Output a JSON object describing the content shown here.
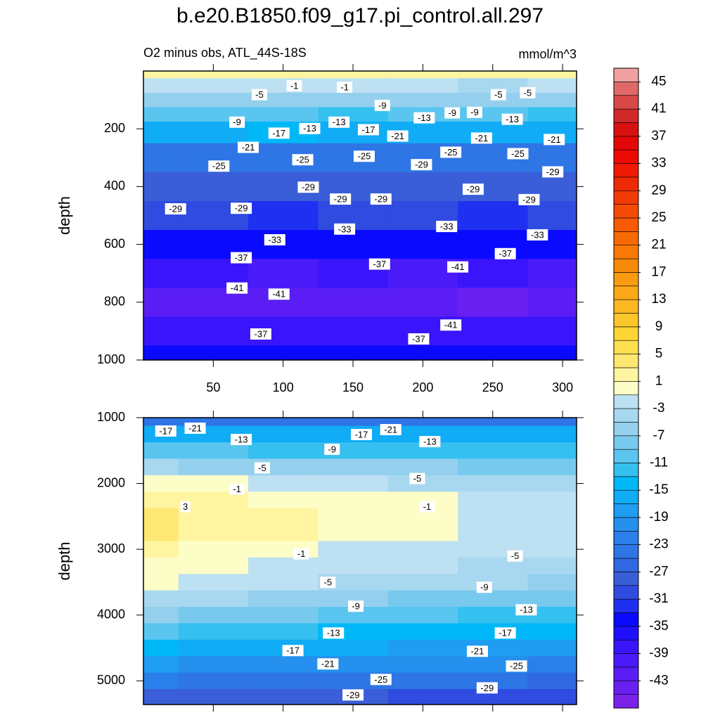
{
  "chart_data": {
    "type": "contour",
    "title": "b.e20.B1850.f09_g17.pi_control.all.297",
    "subtitle": "O2 minus obs, ATL_44S-18S",
    "units": "mmol/m^3",
    "colorbar": {
      "clim": [
        -47,
        47
      ],
      "ticks": [
        45,
        41,
        37,
        33,
        29,
        25,
        21,
        17,
        13,
        9,
        5,
        1,
        -3,
        -7,
        -11,
        -15,
        -19,
        -23,
        -27,
        -31,
        -35,
        -39,
        -43
      ],
      "colors": [
        "#7b22ea",
        "#6a20f0",
        "#5a1ef5",
        "#4a1af8",
        "#3a14fa",
        "#1e10fc",
        "#0a0aff",
        "#1f30f0",
        "#2f4be0",
        "#3a5ed8",
        "#2f68e0",
        "#2e75e6",
        "#2a80ea",
        "#2590ee",
        "#1e9df2",
        "#10acf5",
        "#00b8f8",
        "#35c0f0",
        "#5ac6f0",
        "#78c9ee",
        "#94d0ee",
        "#a8d8f0",
        "#bde0f2",
        "#fdfdc8",
        "#fff5a0",
        "#fde873",
        "#fde050",
        "#fdd534",
        "#fcc72a",
        "#fbb820",
        "#faa818",
        "#f99a10",
        "#f88a0a",
        "#f87a05",
        "#f86a04",
        "#f85a04",
        "#f54a04",
        "#f23a04",
        "#f02a04",
        "#ee1a04",
        "#ec0a04",
        "#e40808",
        "#d81010",
        "#d02828",
        "#d84848",
        "#e06868",
        "#f0a0a0"
      ]
    },
    "panels": [
      {
        "ylabel": "depth",
        "xlim": [
          0,
          310
        ],
        "ylim": [
          0,
          1000
        ],
        "xticks": [
          50,
          100,
          150,
          200,
          250,
          300
        ],
        "yticks": [
          200,
          400,
          600,
          800,
          1000
        ],
        "xtick_labels": true,
        "x": [
          0,
          50,
          100,
          150,
          200,
          250,
          300
        ],
        "depth": [
          0,
          50,
          100,
          150,
          200,
          300,
          400,
          500,
          600,
          700,
          800,
          900,
          1000
        ],
        "values": [
          [
            1,
            1,
            1,
            1,
            1,
            1,
            1
          ],
          [
            -3,
            -3,
            -2,
            -3,
            -3,
            -4,
            -3
          ],
          [
            -7,
            -7,
            -6,
            -7,
            -7,
            -6,
            -7
          ],
          [
            -11,
            -11,
            -11,
            -12,
            -11,
            -11,
            -12
          ],
          [
            -16,
            -16,
            -15,
            -16,
            -16,
            -17,
            -16
          ],
          [
            -24,
            -24,
            -25,
            -24,
            -25,
            -24,
            -25
          ],
          [
            -28,
            -28,
            -28,
            -29,
            -28,
            -28,
            -28
          ],
          [
            -31,
            -31,
            -32,
            -31,
            -31,
            -32,
            -31
          ],
          [
            -35,
            -35,
            -35,
            -35,
            -35,
            -35,
            -35
          ],
          [
            -39,
            -39,
            -40,
            -39,
            -40,
            -39,
            -40
          ],
          [
            -42,
            -43,
            -43,
            -43,
            -42,
            -44,
            -43
          ],
          [
            -38,
            -38,
            -38,
            -38,
            -39,
            -38,
            -38
          ],
          [
            -35,
            -35,
            -35,
            -35,
            -35,
            -35,
            -35
          ]
        ],
        "labels": [
          {
            "x": 83,
            "depth": 82,
            "value": -5
          },
          {
            "x": 108,
            "depth": 51,
            "value": -1
          },
          {
            "x": 144,
            "depth": 56,
            "value": -1
          },
          {
            "x": 171,
            "depth": 119,
            "value": -9
          },
          {
            "x": 201,
            "depth": 162,
            "value": -13
          },
          {
            "x": 221,
            "depth": 145,
            "value": -9
          },
          {
            "x": 237,
            "depth": 143,
            "value": -9
          },
          {
            "x": 254,
            "depth": 82,
            "value": -5
          },
          {
            "x": 275,
            "depth": 75,
            "value": -5
          },
          {
            "x": 67,
            "depth": 177,
            "value": -9
          },
          {
            "x": 97,
            "depth": 215,
            "value": -17
          },
          {
            "x": 119,
            "depth": 199,
            "value": -13
          },
          {
            "x": 140,
            "depth": 177,
            "value": -13
          },
          {
            "x": 161,
            "depth": 203,
            "value": -17
          },
          {
            "x": 182,
            "depth": 225,
            "value": -21
          },
          {
            "x": 242,
            "depth": 232,
            "value": -21
          },
          {
            "x": 264,
            "depth": 167,
            "value": -13
          },
          {
            "x": 294,
            "depth": 237,
            "value": -21
          },
          {
            "x": 75,
            "depth": 264,
            "value": -21
          },
          {
            "x": 54,
            "depth": 329,
            "value": -25
          },
          {
            "x": 114,
            "depth": 307,
            "value": -25
          },
          {
            "x": 158,
            "depth": 295,
            "value": -25
          },
          {
            "x": 220,
            "depth": 281,
            "value": -25
          },
          {
            "x": 268,
            "depth": 286,
            "value": -25
          },
          {
            "x": 199,
            "depth": 324,
            "value": -29
          },
          {
            "x": 293,
            "depth": 349,
            "value": -29
          },
          {
            "x": 118,
            "depth": 402,
            "value": -29
          },
          {
            "x": 141,
            "depth": 443,
            "value": -29
          },
          {
            "x": 170,
            "depth": 443,
            "value": -29
          },
          {
            "x": 236,
            "depth": 409,
            "value": -29
          },
          {
            "x": 276,
            "depth": 445,
            "value": -29
          },
          {
            "x": 23,
            "depth": 477,
            "value": -29
          },
          {
            "x": 70,
            "depth": 475,
            "value": -29
          },
          {
            "x": 94,
            "depth": 584,
            "value": -33
          },
          {
            "x": 144,
            "depth": 547,
            "value": -33
          },
          {
            "x": 217,
            "depth": 538,
            "value": -33
          },
          {
            "x": 282,
            "depth": 567,
            "value": -33
          },
          {
            "x": 70,
            "depth": 646,
            "value": -37
          },
          {
            "x": 169,
            "depth": 668,
            "value": -37
          },
          {
            "x": 259,
            "depth": 632,
            "value": -37
          },
          {
            "x": 225,
            "depth": 678,
            "value": -41
          },
          {
            "x": 67,
            "depth": 751,
            "value": -41
          },
          {
            "x": 97,
            "depth": 772,
            "value": -41
          },
          {
            "x": 220,
            "depth": 879,
            "value": -41
          },
          {
            "x": 84,
            "depth": 910,
            "value": -37
          },
          {
            "x": 197,
            "depth": 927,
            "value": -37
          }
        ]
      },
      {
        "ylabel": "depth",
        "xlim": [
          0,
          310
        ],
        "ylim": [
          1000,
          5360
        ],
        "xticks": [
          50,
          100,
          150,
          200,
          250,
          300
        ],
        "yticks": [
          1000,
          2000,
          3000,
          4000,
          5000
        ],
        "xtick_labels": false,
        "x": [
          0,
          50,
          100,
          150,
          200,
          250,
          300
        ],
        "depth": [
          1000,
          1250,
          1500,
          1750,
          2000,
          2250,
          2500,
          2750,
          3000,
          3250,
          3500,
          3750,
          4000,
          4250,
          4500,
          4750,
          5000,
          5250
        ],
        "values": [
          [
            -25,
            -25,
            -25,
            -25,
            -25,
            -25,
            -25
          ],
          [
            -17,
            -17,
            -17,
            -17,
            -17,
            -17,
            -17
          ],
          [
            -11,
            -11,
            -12,
            -12,
            -12,
            -13,
            -13
          ],
          [
            -5,
            -6,
            -6,
            -7,
            -7,
            -8,
            -8
          ],
          [
            0,
            -1,
            -2,
            -3,
            -4,
            -4,
            -4
          ],
          [
            2,
            1,
            0,
            -1,
            -1,
            -3,
            -3
          ],
          [
            3,
            2,
            1,
            0,
            -0.5,
            -2,
            -2.5
          ],
          [
            3,
            2,
            1,
            0,
            -1,
            -2,
            -2.5
          ],
          [
            1,
            0,
            -1,
            -1.5,
            -2,
            -2.5,
            -3
          ],
          [
            0,
            -1,
            -2,
            -2.5,
            -3,
            -3.5,
            -4
          ],
          [
            -1,
            -2,
            -3,
            -4,
            -4.5,
            -5,
            -6
          ],
          [
            -4,
            -5,
            -6,
            -7,
            -8,
            -8,
            -9
          ],
          [
            -7,
            -8,
            -9,
            -10,
            -11,
            -12,
            -12
          ],
          [
            -11,
            -12,
            -13,
            -14,
            -14,
            -15,
            -15
          ],
          [
            -15,
            -16,
            -17,
            -17,
            -18,
            -18,
            -18
          ],
          [
            -19,
            -20,
            -20,
            -21,
            -21,
            -21,
            -22
          ],
          [
            -23,
            -24,
            -24,
            -25,
            -25,
            -25,
            -26
          ],
          [
            -28,
            -29,
            -29,
            -29,
            -30,
            -30,
            -30
          ]
        ],
        "labels": [
          {
            "x": 16,
            "depth": 1203,
            "value": -17
          },
          {
            "x": 37,
            "depth": 1160,
            "value": -21
          },
          {
            "x": 70,
            "depth": 1332,
            "value": -13
          },
          {
            "x": 135,
            "depth": 1481,
            "value": -9
          },
          {
            "x": 156,
            "depth": 1257,
            "value": -17
          },
          {
            "x": 177,
            "depth": 1182,
            "value": -21
          },
          {
            "x": 205,
            "depth": 1364,
            "value": -13
          },
          {
            "x": 85,
            "depth": 1764,
            "value": -5
          },
          {
            "x": 196,
            "depth": 1925,
            "value": -5
          },
          {
            "x": 67,
            "depth": 2086,
            "value": -1
          },
          {
            "x": 30,
            "depth": 2353,
            "value": 3
          },
          {
            "x": 203,
            "depth": 2353,
            "value": -1
          },
          {
            "x": 113,
            "depth": 3070,
            "value": -1
          },
          {
            "x": 266,
            "depth": 3102,
            "value": -5
          },
          {
            "x": 132,
            "depth": 3503,
            "value": -5
          },
          {
            "x": 244,
            "depth": 3578,
            "value": -9
          },
          {
            "x": 152,
            "depth": 3866,
            "value": -9
          },
          {
            "x": 274,
            "depth": 3920,
            "value": -13
          },
          {
            "x": 136,
            "depth": 4273,
            "value": -13
          },
          {
            "x": 259,
            "depth": 4273,
            "value": -17
          },
          {
            "x": 107,
            "depth": 4540,
            "value": -17
          },
          {
            "x": 239,
            "depth": 4551,
            "value": -21
          },
          {
            "x": 132,
            "depth": 4743,
            "value": -21
          },
          {
            "x": 267,
            "depth": 4775,
            "value": -25
          },
          {
            "x": 170,
            "depth": 4979,
            "value": -25
          },
          {
            "x": 246,
            "depth": 5107,
            "value": -29
          },
          {
            "x": 150,
            "depth": 5214,
            "value": -29
          }
        ]
      }
    ]
  }
}
